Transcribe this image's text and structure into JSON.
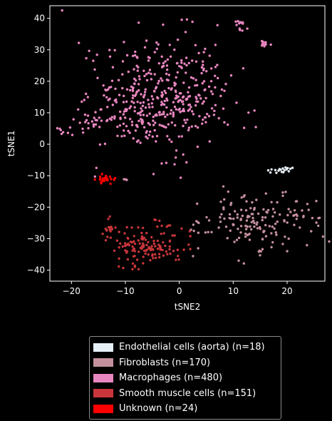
{
  "chart_data": {
    "type": "scatter",
    "xlabel": "tSNE2",
    "ylabel": "tSNE1",
    "xlim": [
      -24,
      27
    ],
    "ylim": [
      -43.5,
      44
    ],
    "xticks": [
      -20,
      -10,
      0,
      10,
      20
    ],
    "yticks": [
      -40,
      -30,
      -20,
      -10,
      0,
      10,
      20,
      30,
      40
    ],
    "grid": false,
    "legend_position": "bottom-outside",
    "series": [
      {
        "name": "Endothelial cells (aorta) (n=18)",
        "color": "#e6eef6",
        "count": 18,
        "points": [
          [
            16.5,
            -8.3
          ],
          [
            16.9,
            -9.0
          ],
          [
            17.1,
            -8.0
          ],
          [
            17.8,
            -8.2
          ],
          [
            18.0,
            -9.1
          ],
          [
            18.4,
            -8.4
          ],
          [
            18.6,
            -7.9
          ],
          [
            19.0,
            -8.8
          ],
          [
            19.2,
            -7.7
          ],
          [
            19.5,
            -8.3
          ],
          [
            19.7,
            -7.4
          ],
          [
            19.9,
            -8.0
          ],
          [
            20.1,
            -7.6
          ],
          [
            20.3,
            -8.6
          ],
          [
            20.6,
            -7.8
          ],
          [
            21.0,
            -7.5
          ],
          [
            18.8,
            -8.1
          ],
          [
            19.3,
            -8.9
          ]
        ]
      },
      {
        "name": "Fibroblasts (n=170)",
        "color": "#c4909e",
        "count": 170,
        "clusters": [
          [
            15.5,
            -24,
            5.5,
            4.5,
            150
          ],
          [
            15.0,
            -34,
            0.2,
            0.3,
            4
          ],
          [
            12.0,
            -38,
            0.1,
            0.1,
            1
          ],
          [
            3.3,
            -19,
            0.1,
            0.1,
            1
          ],
          [
            5.5,
            -28,
            0.5,
            0.3,
            3
          ],
          [
            2.4,
            -27.5,
            0.2,
            0.2,
            2
          ],
          [
            3.5,
            -33,
            0.1,
            0.1,
            1
          ],
          [
            11,
            -37,
            0.2,
            0.2,
            1
          ],
          [
            -10,
            -11.3,
            0.2,
            0.3,
            2
          ],
          [
            2.5,
            -35.5,
            0.1,
            0.1,
            1
          ],
          [
            4,
            -25,
            0.3,
            0.3,
            2
          ],
          [
            24.5,
            -23.5,
            0.1,
            0.1,
            1
          ],
          [
            8,
            -22,
            0.2,
            0.2,
            1
          ]
        ]
      },
      {
        "name": "Macrophages (n=480)",
        "color": "#e886bf",
        "count": 480,
        "clusters": [
          [
            -4,
            14,
            6,
            9,
            390
          ],
          [
            -14,
            7.5,
            2.4,
            1.2,
            24
          ],
          [
            -21,
            4,
            0.9,
            0.8,
            8
          ],
          [
            4,
            22,
            3,
            6,
            30
          ],
          [
            11.3,
            37.7,
            0.6,
            0.9,
            13
          ],
          [
            15.8,
            32,
            0.6,
            0.7,
            10
          ],
          [
            12,
            24,
            0.1,
            0.1,
            1
          ],
          [
            -17,
            15,
            0.1,
            0.1,
            1
          ],
          [
            1,
            39.5,
            0.3,
            0.1,
            2
          ],
          [
            -3,
            38,
            0.1,
            0.1,
            1
          ]
        ]
      },
      {
        "name": "Smooth muscle cells (n=151)",
        "color": "#c8353a",
        "count": 151,
        "clusters": [
          [
            -6,
            -32,
            3.6,
            3.2,
            122
          ],
          [
            -13,
            -26.5,
            0.8,
            1.4,
            18
          ],
          [
            -8,
            -38.5,
            1.2,
            0.5,
            6
          ],
          [
            -2,
            -26,
            0.3,
            0.5,
            3
          ],
          [
            -4.5,
            -24,
            0.3,
            0.2,
            2
          ]
        ]
      },
      {
        "name": "Unknown (n=24)",
        "color": "#ff0000",
        "count": 24,
        "clusters": [
          [
            -13.7,
            -11.2,
            0.9,
            0.9,
            24
          ]
        ]
      }
    ]
  }
}
